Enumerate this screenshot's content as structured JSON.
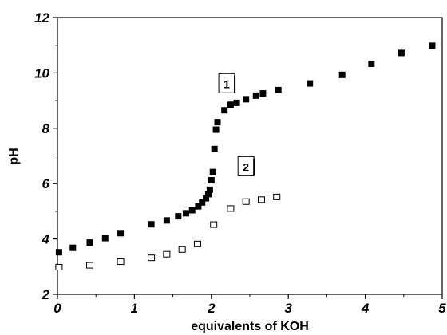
{
  "chart_data": {
    "type": "scatter",
    "xlabel": "equivalents of KOH",
    "ylabel": "pH",
    "xlim": [
      0,
      5
    ],
    "ylim": [
      2,
      12
    ],
    "xticks": [
      "0",
      "1",
      "2",
      "3",
      "4",
      "5"
    ],
    "yticks": [
      "2",
      "4",
      "6",
      "8",
      "10",
      "12"
    ],
    "grid": false,
    "series": [
      {
        "name": "1",
        "marker": "filled-square",
        "color": "#000000",
        "points": [
          [
            0.02,
            3.52
          ],
          [
            0.2,
            3.68
          ],
          [
            0.42,
            3.87
          ],
          [
            0.62,
            4.03
          ],
          [
            0.82,
            4.21
          ],
          [
            1.22,
            4.53
          ],
          [
            1.42,
            4.67
          ],
          [
            1.57,
            4.82
          ],
          [
            1.67,
            4.93
          ],
          [
            1.75,
            5.04
          ],
          [
            1.83,
            5.18
          ],
          [
            1.88,
            5.32
          ],
          [
            1.93,
            5.47
          ],
          [
            1.96,
            5.62
          ],
          [
            1.98,
            5.78
          ],
          [
            2.0,
            6.12
          ],
          [
            2.02,
            6.42
          ],
          [
            2.04,
            7.25
          ],
          [
            2.06,
            7.95
          ],
          [
            2.08,
            8.22
          ],
          [
            2.17,
            8.65
          ],
          [
            2.25,
            8.85
          ],
          [
            2.33,
            8.92
          ],
          [
            2.45,
            9.05
          ],
          [
            2.58,
            9.18
          ],
          [
            2.67,
            9.26
          ],
          [
            2.87,
            9.38
          ],
          [
            3.28,
            9.62
          ],
          [
            3.7,
            9.93
          ],
          [
            4.08,
            10.33
          ],
          [
            4.47,
            10.72
          ],
          [
            4.87,
            10.98
          ]
        ]
      },
      {
        "name": "2",
        "marker": "open-square",
        "color": "#000000",
        "points": [
          [
            0.02,
            2.98
          ],
          [
            0.42,
            3.05
          ],
          [
            0.82,
            3.18
          ],
          [
            1.22,
            3.32
          ],
          [
            1.42,
            3.45
          ],
          [
            1.62,
            3.62
          ],
          [
            1.82,
            3.82
          ],
          [
            2.03,
            4.52
          ],
          [
            2.25,
            5.1
          ],
          [
            2.45,
            5.35
          ],
          [
            2.65,
            5.42
          ],
          [
            2.85,
            5.52
          ]
        ]
      }
    ],
    "annotations": [
      {
        "text": "1",
        "x": 2.2,
        "y": 9.6
      },
      {
        "text": "2",
        "x": 2.45,
        "y": 6.6
      }
    ]
  }
}
